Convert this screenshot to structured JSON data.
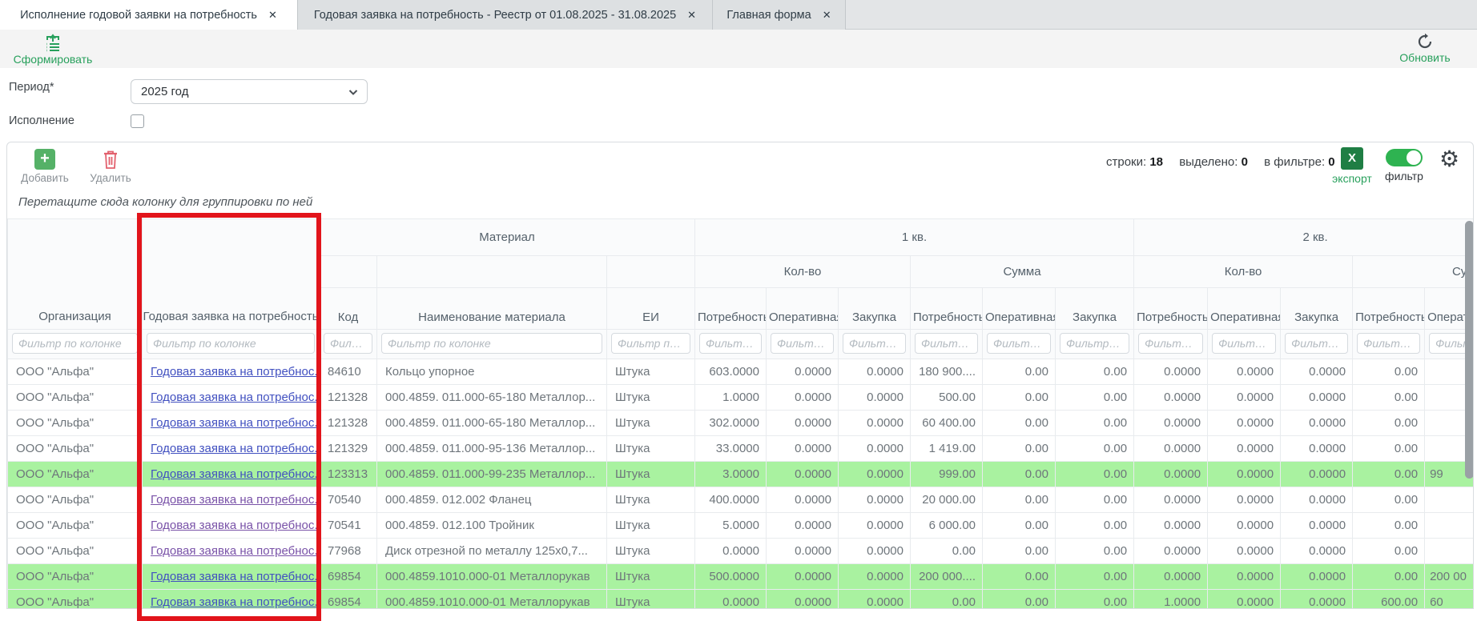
{
  "tabs": [
    {
      "label": "Исполнение годовой заявки на потребность",
      "active": true
    },
    {
      "label": "Годовая заявка на потребность - Реестр от 01.08.2025 - 31.08.2025",
      "active": false
    },
    {
      "label": "Главная форма",
      "active": false
    }
  ],
  "icons": {
    "close": "✕",
    "gear": "⚙",
    "plus": "+",
    "excel": "X"
  },
  "top_toolbar": {
    "generate_label": "Сформировать",
    "refresh_label": "Обновить"
  },
  "form": {
    "period_label": "Период*",
    "period_value": "2025 год",
    "execution_label": "Исполнение",
    "execution_checked": false
  },
  "grid_toolbar": {
    "add_label": "Добавить",
    "delete_label": "Удалить",
    "stats": [
      {
        "label": "строки:",
        "value": "18"
      },
      {
        "label": "выделено:",
        "value": "0"
      },
      {
        "label": "в фильтре:",
        "value": "0"
      }
    ],
    "export_label": "экспорт",
    "filter_label": "фильтр",
    "filter_on": true
  },
  "groupby_hint": "Перетащите сюда колонку для группировки по ней",
  "table": {
    "groups": {
      "material": "Материал",
      "q1": "1 кв.",
      "q2": "2 кв.",
      "qty": "Кол-во",
      "sum": "Сумма"
    },
    "columns": {
      "org": "Организация",
      "annual": "Годовая заявка на потребность",
      "code": "Код",
      "name": "Наименование материала",
      "unit": "ЕИ",
      "need": "Потребность",
      "operative": "Оперативная",
      "purchase": "Закупка"
    },
    "filter_placeholder": "Фильтр по колонке",
    "link_text": "Годовая заявка на потребнос..",
    "rows": [
      {
        "org": "ООО \"Альфа\"",
        "code": "84610",
        "name": "Кольцо упорное",
        "unit": "Штука",
        "q1_qty": [
          "603.0000",
          "0.0000",
          "0.0000"
        ],
        "q1_sum": [
          "180 900....",
          "0.00",
          "0.00"
        ],
        "q2_qty": [
          "0.0000",
          "0.0000",
          "0.0000"
        ],
        "q2_sum": [
          "0.00",
          ""
        ],
        "highlighted": false,
        "visited": false
      },
      {
        "org": "ООО \"Альфа\"",
        "code": "121328",
        "name": "000.4859. 011.000-65-180 Металлор...",
        "unit": "Штука",
        "q1_qty": [
          "1.0000",
          "0.0000",
          "0.0000"
        ],
        "q1_sum": [
          "500.00",
          "0.00",
          "0.00"
        ],
        "q2_qty": [
          "0.0000",
          "0.0000",
          "0.0000"
        ],
        "q2_sum": [
          "0.00",
          ""
        ],
        "highlighted": false,
        "visited": false
      },
      {
        "org": "ООО \"Альфа\"",
        "code": "121328",
        "name": "000.4859. 011.000-65-180 Металлор...",
        "unit": "Штука",
        "q1_qty": [
          "302.0000",
          "0.0000",
          "0.0000"
        ],
        "q1_sum": [
          "60 400.00",
          "0.00",
          "0.00"
        ],
        "q2_qty": [
          "0.0000",
          "0.0000",
          "0.0000"
        ],
        "q2_sum": [
          "0.00",
          ""
        ],
        "highlighted": false,
        "visited": false
      },
      {
        "org": "ООО \"Альфа\"",
        "code": "121329",
        "name": "000.4859. 011.000-95-136 Металлор...",
        "unit": "Штука",
        "q1_qty": [
          "33.0000",
          "0.0000",
          "0.0000"
        ],
        "q1_sum": [
          "1 419.00",
          "0.00",
          "0.00"
        ],
        "q2_qty": [
          "0.0000",
          "0.0000",
          "0.0000"
        ],
        "q2_sum": [
          "0.00",
          ""
        ],
        "highlighted": false,
        "visited": false
      },
      {
        "org": "ООО \"Альфа\"",
        "code": "123313",
        "name": "000.4859. 011.000-99-235 Металлор...",
        "unit": "Штука",
        "q1_qty": [
          "3.0000",
          "0.0000",
          "0.0000"
        ],
        "q1_sum": [
          "999.00",
          "0.00",
          "0.00"
        ],
        "q2_qty": [
          "0.0000",
          "0.0000",
          "0.0000"
        ],
        "q2_sum": [
          "0.00",
          "99"
        ],
        "highlighted": true,
        "visited": false
      },
      {
        "org": "ООО \"Альфа\"",
        "code": "70540",
        "name": "000.4859. 012.002 Фланец",
        "unit": "Штука",
        "q1_qty": [
          "400.0000",
          "0.0000",
          "0.0000"
        ],
        "q1_sum": [
          "20 000.00",
          "0.00",
          "0.00"
        ],
        "q2_qty": [
          "0.0000",
          "0.0000",
          "0.0000"
        ],
        "q2_sum": [
          "0.00",
          ""
        ],
        "highlighted": false,
        "visited": true
      },
      {
        "org": "ООО \"Альфа\"",
        "code": "70541",
        "name": "000.4859. 012.100 Тройник",
        "unit": "Штука",
        "q1_qty": [
          "5.0000",
          "0.0000",
          "0.0000"
        ],
        "q1_sum": [
          "6 000.00",
          "0.00",
          "0.00"
        ],
        "q2_qty": [
          "0.0000",
          "0.0000",
          "0.0000"
        ],
        "q2_sum": [
          "0.00",
          ""
        ],
        "highlighted": false,
        "visited": true
      },
      {
        "org": "ООО \"Альфа\"",
        "code": "77968",
        "name": "Диск отрезной по металлу 125x0,7...",
        "unit": "Штука",
        "q1_qty": [
          "0.0000",
          "0.0000",
          "0.0000"
        ],
        "q1_sum": [
          "0.00",
          "0.00",
          "0.00"
        ],
        "q2_qty": [
          "0.0000",
          "0.0000",
          "0.0000"
        ],
        "q2_sum": [
          "0.00",
          ""
        ],
        "highlighted": false,
        "visited": true
      },
      {
        "org": "ООО \"Альфа\"",
        "code": "69854",
        "name": "000.4859.1010.000-01 Металлорукав",
        "unit": "Штука",
        "q1_qty": [
          "500.0000",
          "0.0000",
          "0.0000"
        ],
        "q1_sum": [
          "200 000....",
          "0.00",
          "0.00"
        ],
        "q2_qty": [
          "0.0000",
          "0.0000",
          "0.0000"
        ],
        "q2_sum": [
          "0.00",
          "200 00"
        ],
        "highlighted": true,
        "visited": false
      },
      {
        "org": "ООО \"Альфа\"",
        "code": "69854",
        "name": "000.4859.1010.000-01 Металлорукав",
        "unit": "Штука",
        "q1_qty": [
          "0.0000",
          "0.0000",
          "0.0000"
        ],
        "q1_sum": [
          "0.00",
          "0.00",
          "0.00"
        ],
        "q2_qty": [
          "1.0000",
          "0.0000",
          "0.0000"
        ],
        "q2_sum": [
          "600.00",
          "60"
        ],
        "highlighted": true,
        "visited": false
      }
    ]
  }
}
